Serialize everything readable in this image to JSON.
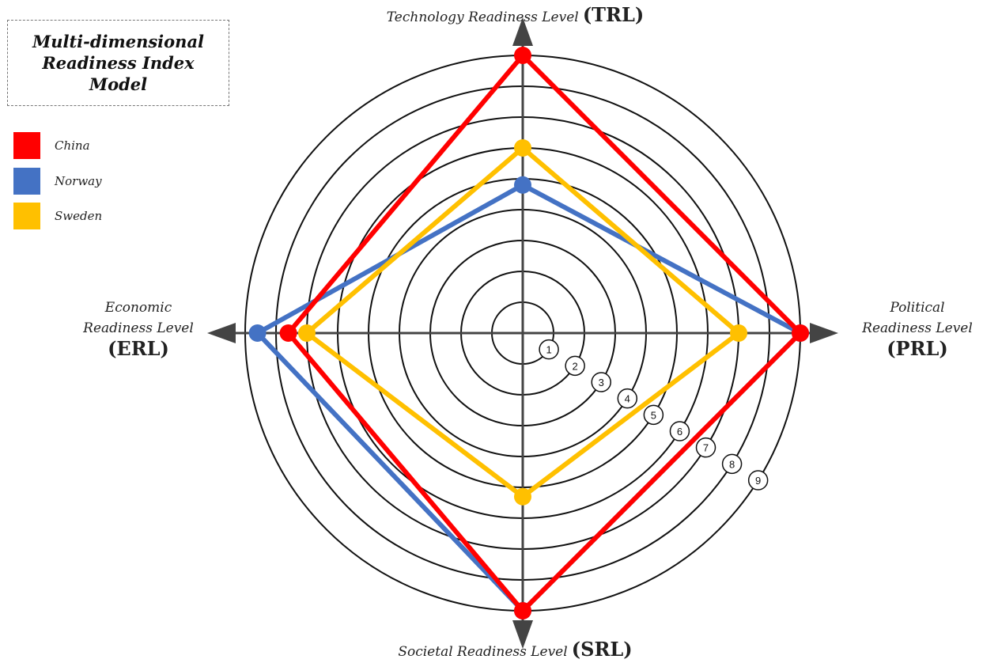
{
  "title_lines": [
    "Multi-dimensional",
    "Readiness Index",
    "Model"
  ],
  "chart_data": {
    "type": "radar",
    "axes": [
      {
        "key": "TRL",
        "name": "Technology Readiness Level",
        "abbr": "(TRL)",
        "position": "top"
      },
      {
        "key": "PRL",
        "name": "Political Readiness Level",
        "abbr": "(PRL)",
        "position": "right"
      },
      {
        "key": "SRL",
        "name": "Societal Readiness Level",
        "abbr": "(SRL)",
        "position": "bottom"
      },
      {
        "key": "ERL",
        "name": "Economic Readiness Level",
        "abbr": "(ERL)",
        "position": "left"
      }
    ],
    "rings": [
      1,
      2,
      3,
      4,
      5,
      6,
      7,
      8,
      9
    ],
    "max": 9,
    "series": [
      {
        "name": "China",
        "color": "#ff0000",
        "values": {
          "TRL": 9.0,
          "PRL": 9.0,
          "SRL": 9.0,
          "ERL": 7.6
        }
      },
      {
        "name": "Norway",
        "color": "#4472c4",
        "values": {
          "TRL": 4.8,
          "PRL": 9.0,
          "SRL": 9.0,
          "ERL": 8.6
        }
      },
      {
        "name": "Sweden",
        "color": "#ffc000",
        "values": {
          "TRL": 6.0,
          "PRL": 7.0,
          "SRL": 5.3,
          "ERL": 7.0
        }
      }
    ]
  }
}
